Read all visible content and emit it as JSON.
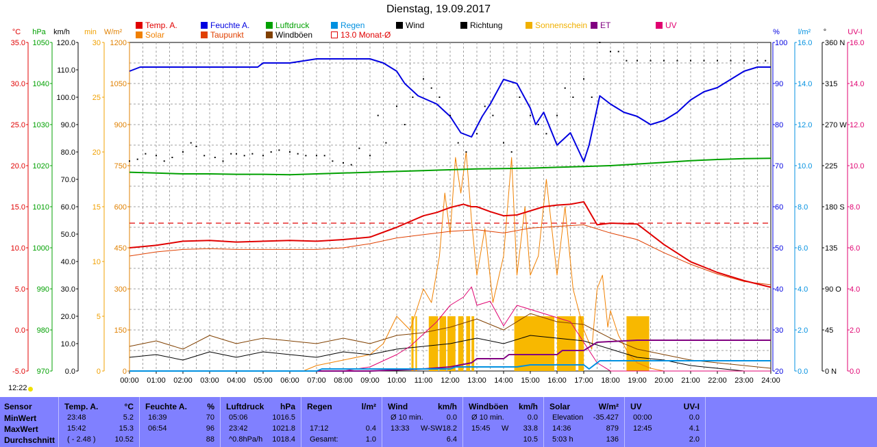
{
  "title": "Dienstag, 19.09.2017",
  "clock": "12:22",
  "legend": [
    {
      "label": "Temp. A.",
      "color": "#e00000"
    },
    {
      "label": "Solar",
      "color": "#f08000"
    },
    {
      "label": "Feuchte A.",
      "color": "#0000e0"
    },
    {
      "label": "Taupunkt",
      "color": "#e04000"
    },
    {
      "label": "Luftdruck",
      "color": "#00a000"
    },
    {
      "label": "Windböen",
      "color": "#804000"
    },
    {
      "label": "Regen",
      "color": "#0090e0"
    },
    {
      "label": "13.0 Monat-Ø",
      "color": "#e00000"
    },
    {
      "label": "Wind",
      "color": "#000000"
    },
    {
      "label": "Richtung",
      "color": "#000000"
    },
    {
      "label": "Sonnenschein",
      "color": "#f0b000"
    },
    {
      "label": "ET",
      "color": "#800080"
    },
    {
      "label": "UV",
      "color": "#e00070"
    }
  ],
  "axes": {
    "temp": {
      "unit": "°C",
      "color": "#e00000",
      "ticks": [
        "35.0",
        "30.0",
        "25.0",
        "20.0",
        "15.0",
        "10.0",
        "5.0",
        "0.0",
        "-5.0"
      ]
    },
    "press": {
      "unit": "hPa",
      "color": "#00a000",
      "ticks": [
        "1050",
        "1040",
        "1030",
        "1020",
        "1010",
        "1000",
        "990",
        "980",
        "970"
      ]
    },
    "wind": {
      "unit": "km/h",
      "color": "#000000",
      "ticks": [
        "120.0",
        "110.0",
        "100.0",
        "90.0",
        "80.0",
        "70.0",
        "60.0",
        "50.0",
        "40.0",
        "30.0",
        "20.0",
        "10.0",
        "0.0"
      ]
    },
    "sun": {
      "unit": "min",
      "color": "#f0a000",
      "ticks": [
        "30",
        "25",
        "20",
        "15",
        "10",
        "5",
        "0"
      ]
    },
    "solar": {
      "unit": "W/m²",
      "color": "#e08000",
      "ticks": [
        "1200",
        "1050",
        "900",
        "750",
        "600",
        "450",
        "300",
        "150",
        "0"
      ]
    },
    "hum": {
      "unit": "%",
      "color": "#0000e0",
      "ticks": [
        "100",
        "90",
        "80",
        "70",
        "60",
        "50",
        "40",
        "30",
        "20"
      ]
    },
    "rain": {
      "unit": "l/m²",
      "color": "#0090e0",
      "ticks": [
        "16.0",
        "14.0",
        "12.0",
        "10.0",
        "8.0",
        "6.0",
        "4.0",
        "2.0",
        "0.0"
      ]
    },
    "dir": {
      "unit": "°",
      "color": "#000000",
      "ticks": [
        "360 N",
        "315",
        "270 W",
        "225",
        "180 S",
        "135",
        "90 O",
        "45",
        "0 N"
      ]
    },
    "uv": {
      "unit": "UV-I",
      "color": "#e00070",
      "ticks": [
        "16.0",
        "14.0",
        "12.0",
        "10.0",
        "8.0",
        "6.0",
        "4.0",
        "2.0",
        "0.0"
      ]
    }
  },
  "chart_data": {
    "type": "line",
    "title": "Dienstag, 19.09.2017",
    "x_ticks": [
      "00:00",
      "01:00",
      "02:00",
      "03:00",
      "04:00",
      "05:00",
      "06:00",
      "07:00",
      "08:00",
      "09:00",
      "10:00",
      "11:00",
      "12:00",
      "13:00",
      "14:00",
      "15:00",
      "16:00",
      "17:00",
      "18:00",
      "19:00",
      "20:00",
      "21:00",
      "22:00",
      "23:00",
      "24:00"
    ],
    "xlim": [
      0,
      24
    ],
    "series": [
      {
        "name": "Temp. A.",
        "axis": "temp",
        "x": [
          0,
          1,
          2,
          3,
          4,
          5,
          6,
          7,
          8,
          9,
          10,
          11,
          11.5,
          12,
          12.5,
          12.8,
          13,
          13.5,
          14,
          14.5,
          15,
          15.5,
          16,
          16.5,
          17,
          17.5,
          18,
          19,
          20,
          21,
          22,
          23,
          24
        ],
        "y": [
          10.0,
          10.3,
          10.8,
          10.9,
          10.7,
          10.8,
          10.9,
          10.8,
          11.0,
          11.3,
          12.5,
          13.9,
          14.3,
          14.9,
          15.3,
          15.0,
          15.0,
          14.4,
          13.9,
          14.0,
          14.5,
          15.0,
          15.2,
          15.3,
          15.6,
          12.8,
          13.0,
          12.9,
          10.4,
          8.3,
          7.0,
          6.0,
          5.2
        ]
      },
      {
        "name": "Taupunkt",
        "axis": "temp",
        "x": [
          0,
          1,
          2,
          3,
          4,
          5,
          6,
          7,
          8,
          9,
          10,
          11,
          12,
          13,
          14,
          15,
          16,
          17,
          18,
          19,
          20,
          21,
          22,
          23,
          24
        ],
        "y": [
          9.0,
          9.5,
          9.8,
          9.9,
          9.8,
          9.8,
          9.8,
          9.8,
          10.0,
          10.5,
          11.2,
          11.6,
          12.0,
          12.2,
          11.8,
          12.4,
          12.6,
          12.8,
          11.8,
          11.0,
          9.4,
          8.0,
          6.8,
          5.9,
          5.5
        ]
      },
      {
        "name": "Feuchte A.",
        "axis": "hum",
        "x": [
          0,
          0.4,
          1,
          2,
          3,
          4.8,
          5,
          6,
          7,
          8,
          9,
          9.5,
          10,
          10.3,
          10.8,
          11.5,
          12,
          12.4,
          12.8,
          13.2,
          13.5,
          14,
          14.5,
          15,
          15.2,
          15.5,
          16,
          16.5,
          17,
          17.2,
          17.6,
          18,
          18.5,
          19,
          19.5,
          20,
          20.5,
          21,
          21.5,
          22,
          22.5,
          23,
          23.5,
          24
        ],
        "y": [
          93,
          94,
          94,
          94,
          94,
          94,
          95,
          95,
          96,
          96,
          96,
          95,
          93,
          90,
          87,
          85,
          82,
          78,
          77,
          82,
          85,
          91,
          90,
          84,
          80,
          83,
          75,
          78,
          71,
          75,
          87,
          85,
          83,
          82,
          80,
          81,
          83,
          86,
          88,
          89,
          91,
          93,
          94,
          94
        ]
      },
      {
        "name": "Luftdruck",
        "axis": "press",
        "x": [
          0,
          1,
          2,
          3,
          4,
          5,
          6,
          7,
          8,
          9,
          10,
          11,
          12,
          13,
          14,
          15,
          16,
          17,
          18,
          19,
          20,
          21,
          22,
          23,
          24
        ],
        "y": [
          1018.4,
          1018.2,
          1018.0,
          1018.0,
          1017.9,
          1017.9,
          1017.8,
          1018.0,
          1018.2,
          1018.4,
          1018.6,
          1018.8,
          1019.0,
          1019.2,
          1019.3,
          1019.4,
          1019.6,
          1019.8,
          1020.0,
          1020.4,
          1020.8,
          1021.2,
          1021.5,
          1021.7,
          1021.8
        ]
      },
      {
        "name": "Solar",
        "axis": "solar",
        "x": [
          0,
          6.5,
          7,
          8,
          9,
          9.5,
          10,
          10.5,
          11,
          11.3,
          11.6,
          11.8,
          12,
          12.2,
          12.4,
          12.6,
          12.8,
          13,
          13.3,
          13.6,
          14,
          14.3,
          14.5,
          14.8,
          15,
          15.3,
          15.6,
          16,
          16.3,
          16.6,
          17,
          17.3,
          17.5,
          17.7,
          17.9,
          18,
          18.3,
          18.7,
          19,
          19.5,
          20,
          24
        ],
        "y": [
          0,
          0,
          20,
          40,
          60,
          100,
          200,
          150,
          300,
          250,
          420,
          650,
          500,
          780,
          650,
          800,
          550,
          350,
          520,
          250,
          420,
          780,
          350,
          600,
          350,
          420,
          700,
          350,
          600,
          300,
          150,
          80,
          300,
          350,
          160,
          220,
          130,
          60,
          30,
          10,
          0,
          0
        ]
      },
      {
        "name": "Wind",
        "axis": "wind",
        "x": [
          0,
          1,
          2,
          3,
          4,
          5,
          6,
          7,
          8,
          9,
          10,
          11,
          12,
          13,
          14,
          15,
          16,
          17,
          18,
          19,
          20,
          21,
          22,
          23,
          24
        ],
        "y": [
          5,
          6,
          4,
          7,
          5,
          7,
          6,
          5,
          7,
          6,
          8,
          9,
          10,
          12,
          10,
          13,
          12,
          11,
          8,
          5,
          4,
          2,
          1,
          0,
          0
        ]
      },
      {
        "name": "Windböen",
        "axis": "wind",
        "x": [
          0,
          1,
          2,
          3,
          4,
          5,
          6,
          7,
          8,
          9,
          10,
          11,
          12,
          13,
          14,
          15,
          16,
          17,
          18,
          19,
          20,
          21,
          22,
          23,
          24
        ],
        "y": [
          9,
          11,
          8,
          13,
          10,
          12,
          11,
          10,
          12,
          10,
          13,
          14,
          16,
          19,
          15,
          21,
          18,
          17,
          12,
          8,
          6,
          4,
          3,
          2,
          1
        ]
      },
      {
        "name": "UV",
        "axis": "uv",
        "x": [
          0,
          8,
          9,
          10,
          10.5,
          11,
          11.5,
          12,
          12.5,
          12.8,
          13,
          13.5,
          14,
          14.5,
          15,
          15.5,
          16,
          16.5,
          17,
          17.5,
          18,
          24
        ],
        "y": [
          0,
          0,
          0.2,
          0.8,
          1.2,
          1.8,
          2.4,
          3.2,
          3.6,
          4.1,
          3.2,
          3.4,
          2.2,
          3.2,
          3.0,
          2.8,
          2.6,
          2.4,
          1.4,
          0.4,
          0,
          0
        ]
      },
      {
        "name": "ET",
        "axis": "uv",
        "x": [
          0,
          9,
          10,
          11,
          12,
          12.8,
          13,
          14,
          14.2,
          15,
          16,
          16.2,
          17,
          17.5,
          19,
          24
        ],
        "y": [
          0,
          0,
          0.05,
          0.1,
          0.2,
          0.4,
          0.6,
          0.6,
          0.8,
          0.8,
          0.8,
          1.0,
          1.0,
          1.4,
          1.5,
          1.5
        ]
      },
      {
        "name": "Regen",
        "axis": "rain",
        "x": [
          0,
          7,
          7.2,
          12,
          12.2,
          14.5,
          15,
          17,
          17.2,
          17.5,
          17.6,
          24
        ],
        "y": [
          0,
          0,
          0.1,
          0.1,
          0.2,
          0.2,
          0.3,
          0.3,
          0.1,
          0.4,
          0.5,
          0.5
        ]
      }
    ],
    "direction_points": {
      "axis": "dir",
      "x": [
        0,
        0.3,
        0.6,
        1.0,
        1.3,
        1.6,
        2.0,
        2.3,
        2.5,
        2.8,
        3.2,
        3.5,
        3.8,
        4.0,
        4.3,
        4.6,
        5.0,
        5.3,
        5.6,
        6.0,
        6.3,
        6.6,
        7.0,
        7.3,
        7.6,
        8.0,
        8.3,
        8.6,
        9.0,
        9.3,
        9.6,
        10.0,
        10.3,
        10.6,
        11.0,
        11.3,
        11.6,
        12.0,
        12.3,
        12.6,
        13.0,
        13.3,
        13.6,
        14.0,
        14.3,
        14.6,
        15.0,
        15.3,
        15.6,
        16.0,
        16.3,
        16.6,
        17.0,
        17.3,
        17.6,
        18.0,
        18.3,
        18.6,
        19.0,
        19.5,
        20.0,
        20.5,
        21.0,
        21.5,
        22.0,
        22.5,
        23.0,
        23.5,
        23.8
      ],
      "y": [
        230,
        232,
        238,
        236,
        230,
        234,
        240,
        250,
        246,
        236,
        234,
        230,
        238,
        238,
        236,
        238,
        236,
        240,
        242,
        240,
        238,
        236,
        236,
        236,
        230,
        228,
        226,
        244,
        236,
        280,
        250,
        290,
        270,
        300,
        320,
        310,
        300,
        280,
        250,
        240,
        260,
        290,
        280,
        250,
        240,
        300,
        280,
        270,
        260,
        280,
        310,
        300,
        320,
        300,
        360,
        350,
        350,
        340,
        340,
        340,
        340,
        340,
        340,
        340,
        340,
        340,
        340,
        340,
        340
      ]
    },
    "reference_line": {
      "name": "13.0 Monat-Ø",
      "axis": "temp",
      "value": 13.0
    },
    "sunshine_bars": [
      {
        "x": 10.55,
        "w": 0.08
      },
      {
        "x": 10.7,
        "w": 0.06
      },
      {
        "x": 11.2,
        "w": 0.35
      },
      {
        "x": 11.6,
        "w": 0.25
      },
      {
        "x": 11.9,
        "w": 0.3
      },
      {
        "x": 12.3,
        "w": 0.2
      },
      {
        "x": 12.6,
        "w": 0.15
      },
      {
        "x": 12.8,
        "w": 0.1
      },
      {
        "x": 14.4,
        "w": 1.5
      },
      {
        "x": 16.0,
        "w": 0.7
      },
      {
        "x": 16.8,
        "w": 0.2
      },
      {
        "x": 18.6,
        "w": 0.85
      }
    ],
    "sunshine_value": 5
  },
  "table": {
    "sensor": {
      "header": "Sensor",
      "rows": [
        "MinWert",
        "MaxWert",
        "Durchschnitt"
      ]
    },
    "temp": {
      "header": "Temp. A.",
      "unit": "°C",
      "times": [
        "23:48",
        "15:42",
        "( - 2.48 )"
      ],
      "values": [
        "5.2",
        "15.3",
        "10.52"
      ]
    },
    "hum": {
      "header": "Feuchte A.",
      "unit": "%",
      "times": [
        "16:39",
        "06:54",
        ""
      ],
      "values": [
        "70",
        "96",
        "88"
      ]
    },
    "press": {
      "header": "Luftdruck",
      "unit": "hPa",
      "times": [
        "05:06",
        "23:42",
        "^0.8hPa/h"
      ],
      "values": [
        "1016.5",
        "1021.8",
        "1018.4"
      ]
    },
    "rain": {
      "header": "Regen",
      "unit": "l/m²",
      "times": [
        "",
        "17:12",
        "Gesamt:"
      ],
      "values": [
        "",
        "0.4",
        "1.0"
      ]
    },
    "wind": {
      "header": "Wind",
      "unit": "km/h",
      "times": [
        "Ø 10 min.",
        "13:33",
        ""
      ],
      "mid": [
        "",
        "W-SW",
        ""
      ],
      "values": [
        "0.0",
        "18.2",
        "6.4"
      ]
    },
    "gust": {
      "header": "Windböen",
      "unit": "km/h",
      "times": [
        "Ø 10 min.",
        "15:45",
        ""
      ],
      "mid": [
        "",
        "W",
        ""
      ],
      "values": [
        "0.0",
        "33.8",
        "10.5"
      ]
    },
    "solar": {
      "header": "Solar",
      "unit": "W/m²",
      "times": [
        "Elevation",
        "14:36",
        "5:03 h"
      ],
      "values": [
        "-35.427",
        "879",
        "136"
      ]
    },
    "uv": {
      "header": "UV",
      "unit": "UV-I",
      "times": [
        "00:00",
        "12:45",
        ""
      ],
      "values": [
        "0.0",
        "4.1",
        "2.0"
      ]
    }
  }
}
